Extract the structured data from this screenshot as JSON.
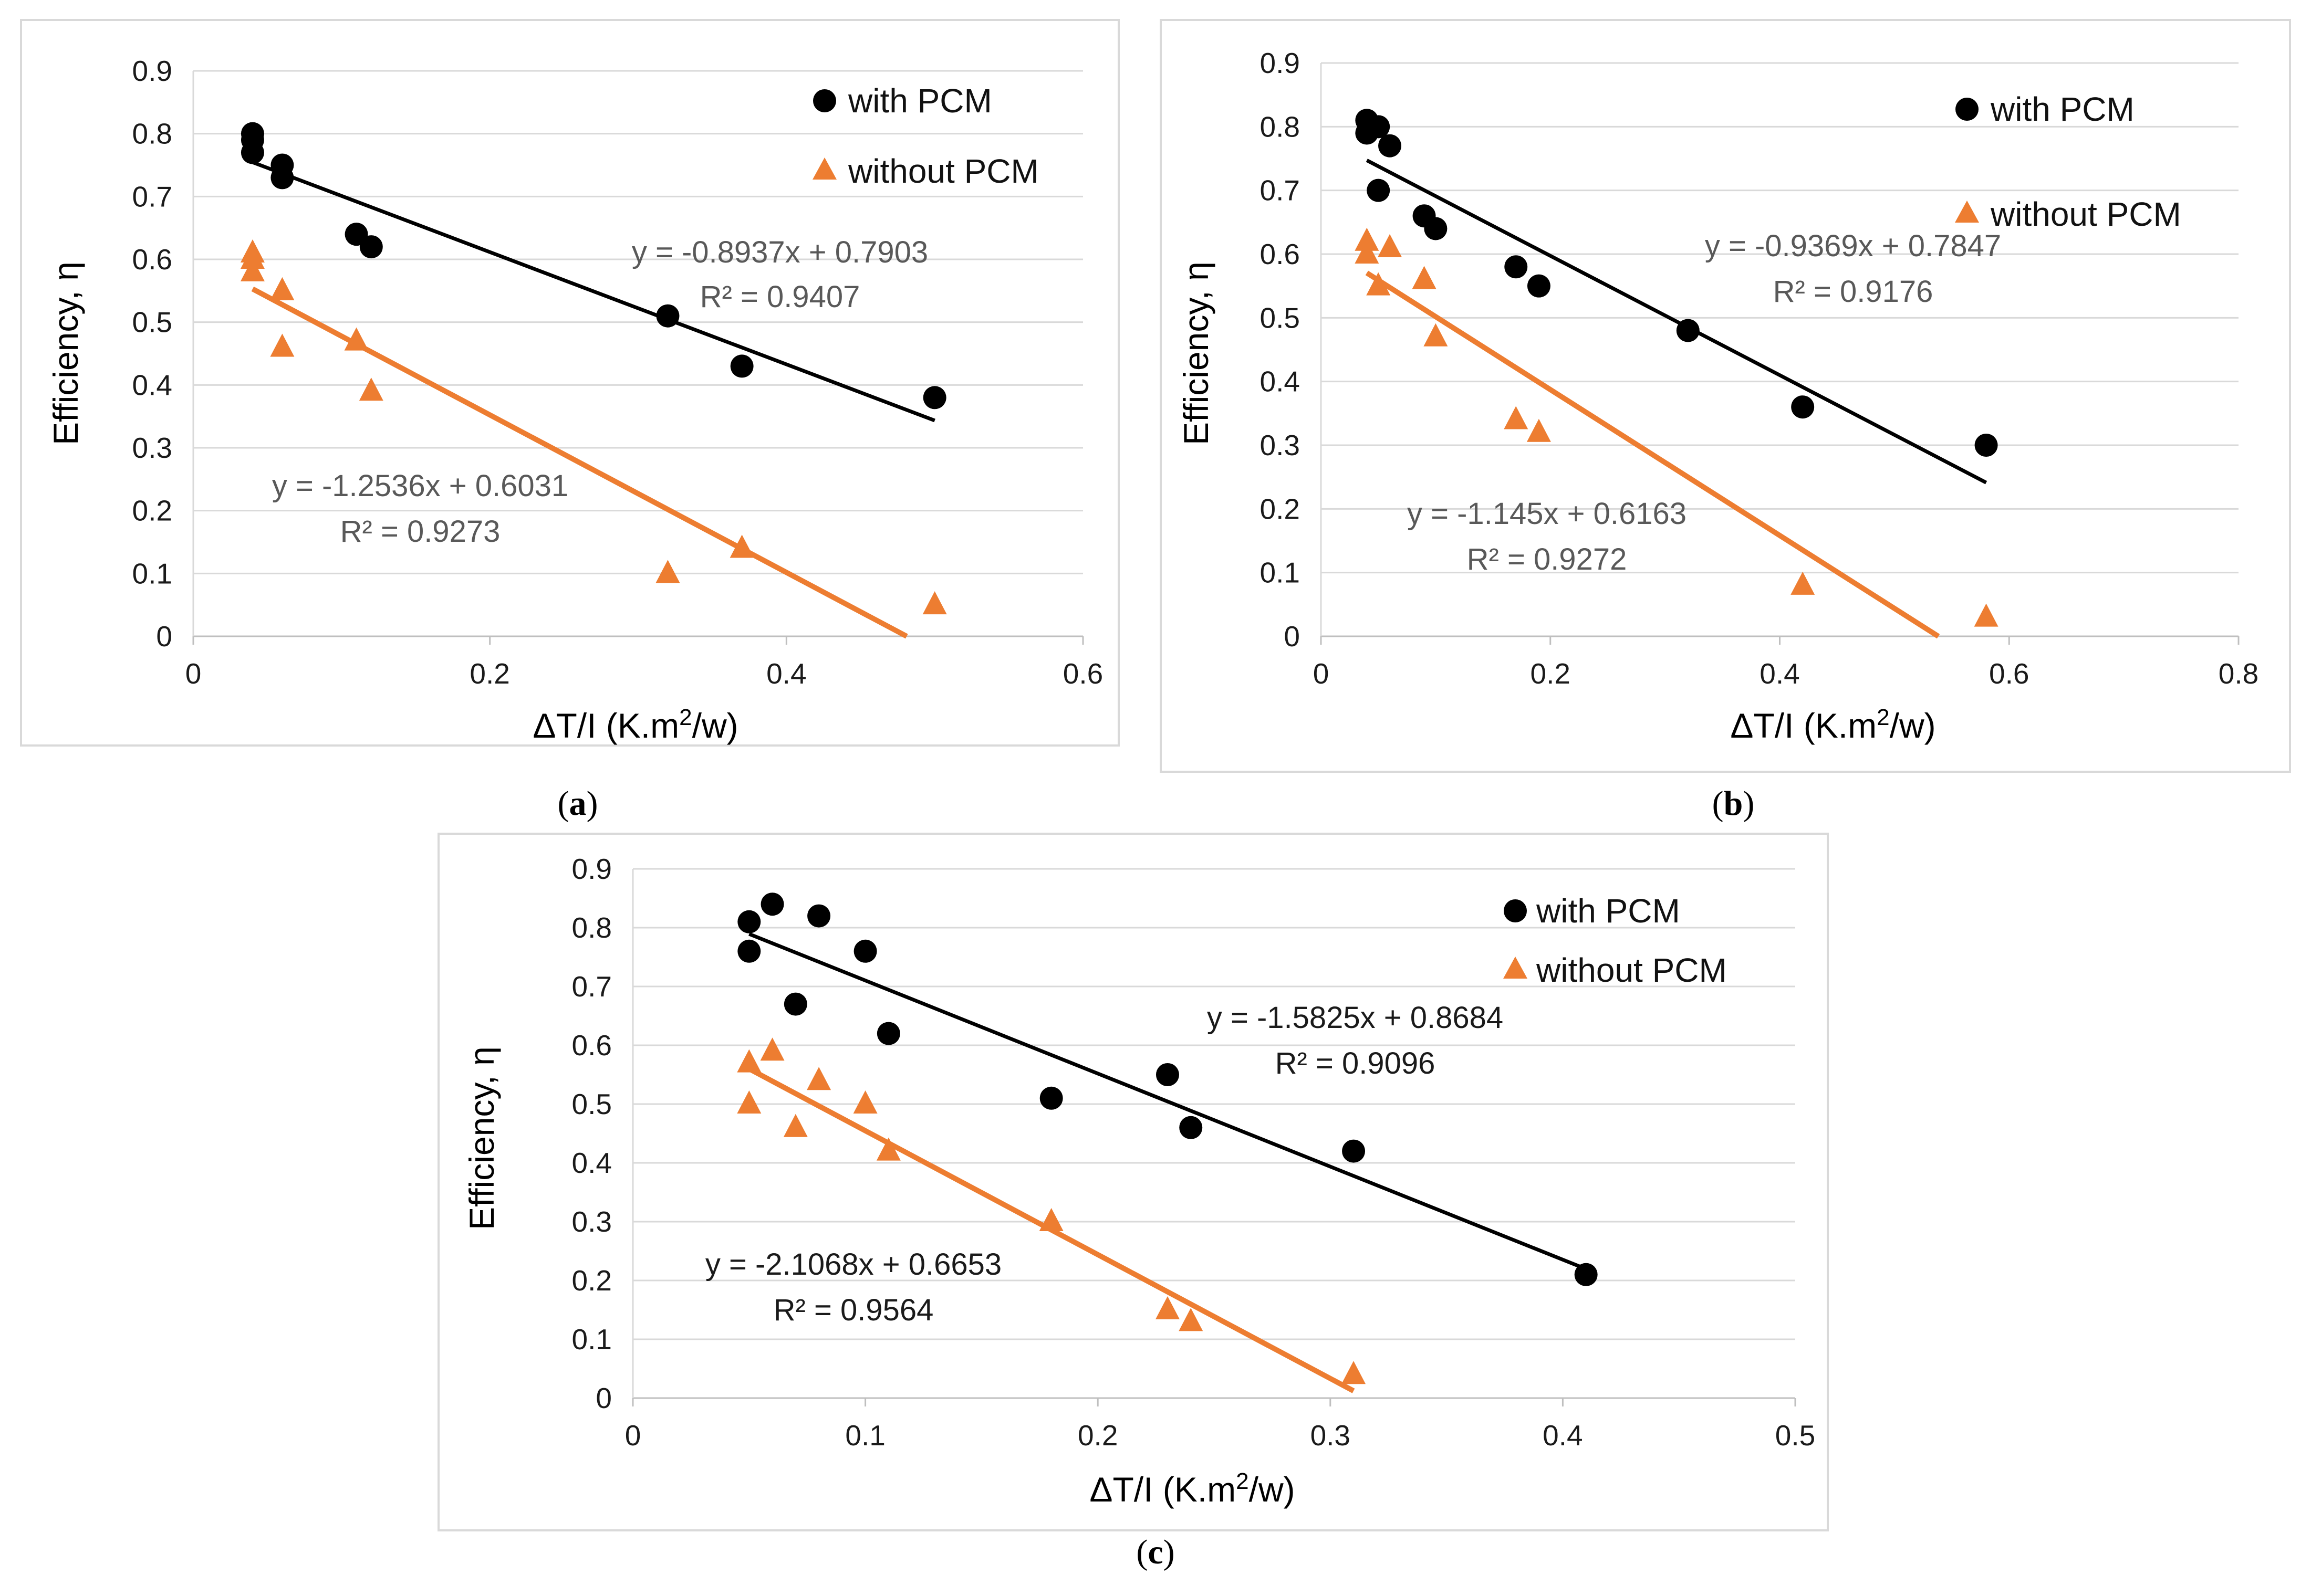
{
  "colors": {
    "with": "#000000",
    "without": "#ED7D31",
    "grid": "#D9D9D9",
    "frame": "#D9D9D9"
  },
  "chart_data": [
    {
      "type": "scatter",
      "panel": "a",
      "panel_label_open": "(",
      "panel_label_letter": "a",
      "panel_label_close": ")",
      "xlabel": "ΔT/I (K.m²/w)",
      "ylabel": "Efficiency, η",
      "xlim": [
        0,
        0.6
      ],
      "ylim": [
        0,
        0.9
      ],
      "xticks": [
        0,
        0.2,
        0.4,
        0.6
      ],
      "yticks": [
        0,
        0.1,
        0.2,
        0.3,
        0.4,
        0.5,
        0.6,
        0.7,
        0.8,
        0.9
      ],
      "legend_position": "top-right",
      "series": [
        {
          "name": "with PCM",
          "marker": "circle",
          "x": [
            0.04,
            0.04,
            0.04,
            0.06,
            0.06,
            0.11,
            0.12,
            0.32,
            0.37,
            0.5
          ],
          "y": [
            0.8,
            0.79,
            0.77,
            0.75,
            0.73,
            0.64,
            0.62,
            0.51,
            0.43,
            0.38
          ],
          "trendline": {
            "slope": -0.8937,
            "intercept": 0.7903,
            "x_range": [
              0.04,
              0.5
            ]
          },
          "equation": "y = -0.8937x + 0.7903",
          "r2": "R² = 0.9407"
        },
        {
          "name": "without PCM",
          "marker": "triangle",
          "x": [
            0.04,
            0.04,
            0.04,
            0.06,
            0.06,
            0.11,
            0.12,
            0.32,
            0.37,
            0.5
          ],
          "y": [
            0.61,
            0.6,
            0.58,
            0.55,
            0.46,
            0.47,
            0.39,
            0.1,
            0.14,
            0.05
          ],
          "trendline": {
            "slope": -1.2536,
            "intercept": 0.6031,
            "x_range": [
              0.04,
              0.4811
            ]
          },
          "equation": "y = -1.2536x + 0.6031",
          "r2": "R² = 0.9273"
        }
      ]
    },
    {
      "type": "scatter",
      "panel": "b",
      "panel_label_open": "(",
      "panel_label_letter": "b",
      "panel_label_close": ")",
      "xlabel": "ΔT/I (K.m²/w)",
      "ylabel": "Efficiency, η",
      "xlim": [
        0,
        0.8
      ],
      "ylim": [
        0,
        0.9
      ],
      "xticks": [
        0,
        0.2,
        0.4,
        0.6,
        0.8
      ],
      "yticks": [
        0,
        0.1,
        0.2,
        0.3,
        0.4,
        0.5,
        0.6,
        0.7,
        0.8,
        0.9
      ],
      "legend_position": "top-right",
      "series": [
        {
          "name": "with PCM",
          "marker": "circle",
          "x": [
            0.04,
            0.05,
            0.04,
            0.06,
            0.05,
            0.09,
            0.1,
            0.17,
            0.19,
            0.32,
            0.42,
            0.58
          ],
          "y": [
            0.81,
            0.8,
            0.79,
            0.77,
            0.7,
            0.66,
            0.64,
            0.58,
            0.55,
            0.48,
            0.36,
            0.3
          ],
          "trendline": {
            "slope": -0.9369,
            "intercept": 0.7847,
            "x_range": [
              0.04,
              0.58
            ]
          },
          "equation": "y = -0.9369x + 0.7847",
          "r2": "R² = 0.9176"
        },
        {
          "name": "without PCM",
          "marker": "triangle",
          "x": [
            0.04,
            0.04,
            0.06,
            0.05,
            0.09,
            0.1,
            0.17,
            0.19,
            0.42,
            0.58
          ],
          "y": [
            0.62,
            0.6,
            0.61,
            0.55,
            0.56,
            0.47,
            0.34,
            0.32,
            0.08,
            0.03
          ],
          "trendline": {
            "slope": -1.145,
            "intercept": 0.6163,
            "x_range": [
              0.04,
              0.5383
            ]
          },
          "equation": "y = -1.145x + 0.6163",
          "r2": "R² = 0.9272"
        }
      ]
    },
    {
      "type": "scatter",
      "panel": "c",
      "panel_label_open": "(",
      "panel_label_letter": "c",
      "panel_label_close": ")",
      "xlabel": "ΔT/I (K.m²/w)",
      "ylabel": "Efficiency, η",
      "xlim": [
        0,
        0.5
      ],
      "ylim": [
        0,
        0.9
      ],
      "xticks": [
        0,
        0.1,
        0.2,
        0.3,
        0.4,
        0.5
      ],
      "yticks": [
        0,
        0.1,
        0.2,
        0.3,
        0.4,
        0.5,
        0.6,
        0.7,
        0.8,
        0.9
      ],
      "legend_position": "top-right",
      "series": [
        {
          "name": "with PCM",
          "marker": "circle",
          "x": [
            0.05,
            0.06,
            0.08,
            0.05,
            0.1,
            0.07,
            0.11,
            0.18,
            0.23,
            0.24,
            0.31,
            0.41
          ],
          "y": [
            0.81,
            0.84,
            0.82,
            0.76,
            0.76,
            0.67,
            0.62,
            0.51,
            0.55,
            0.46,
            0.42,
            0.21
          ],
          "trendline": {
            "slope": -1.5825,
            "intercept": 0.8684,
            "x_range": [
              0.05,
              0.41
            ]
          },
          "equation": "y = -1.5825x + 0.8684",
          "r2": "R² = 0.9096"
        },
        {
          "name": "without PCM",
          "marker": "triangle",
          "x": [
            0.05,
            0.06,
            0.05,
            0.08,
            0.1,
            0.07,
            0.11,
            0.18,
            0.23,
            0.24,
            0.31
          ],
          "y": [
            0.57,
            0.59,
            0.5,
            0.54,
            0.5,
            0.46,
            0.42,
            0.3,
            0.15,
            0.13,
            0.04
          ],
          "trendline": {
            "slope": -2.1068,
            "intercept": 0.6653,
            "x_range": [
              0.05,
              0.31
            ]
          },
          "equation": "y = -2.1068x + 0.6653",
          "r2": "R² = 0.9564"
        }
      ]
    }
  ]
}
